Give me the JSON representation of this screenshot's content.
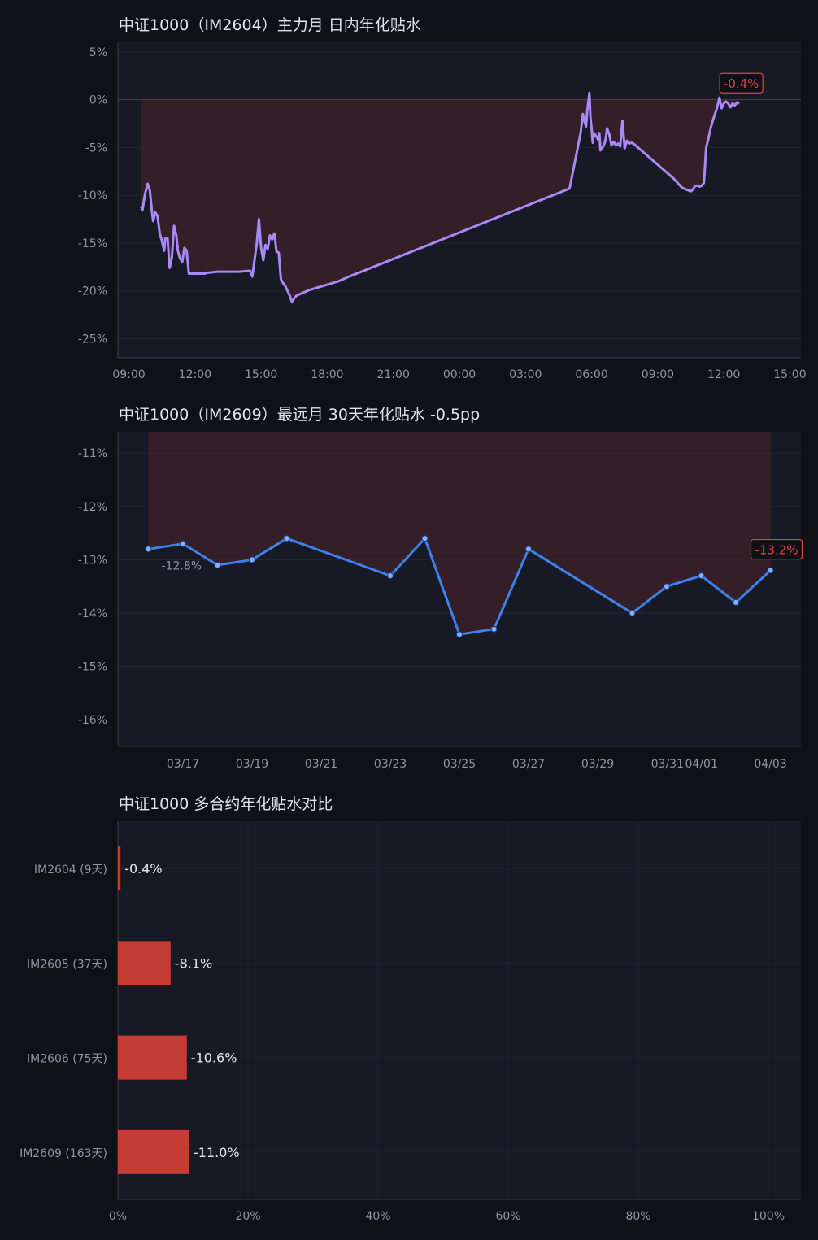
{
  "colors": {
    "background": "#101116",
    "plot_bg": "#171a24",
    "fill": "#3a2029",
    "line_purple": "#a889f5",
    "line_blue": "#3c82ee",
    "bar_red": "#c43c34",
    "callout_red": "#e0463c"
  },
  "chart_data": [
    {
      "type": "area",
      "title": "中证1000（IM2604）主力月 日内年化贴水",
      "x_tick_labels": [
        "09:00",
        "12:00",
        "15:00",
        "18:00",
        "21:00",
        "00:00",
        "03:00",
        "06:00",
        "09:00",
        "12:00",
        "15:00"
      ],
      "y_tick_labels": [
        "5%",
        "0%",
        "-5%",
        "-10%",
        "-15%",
        "-20%",
        "-25%"
      ],
      "ylim": [
        -27,
        6
      ],
      "x_range_hours": [
        -0.5,
        30.5
      ],
      "last_value_label": "-0.4%",
      "grid": true,
      "series": [
        {
          "x_hours": [
            0.55,
            0.62,
            0.72,
            0.85,
            0.95,
            1.05,
            1.1,
            1.2,
            1.3,
            1.4,
            1.5,
            1.6,
            1.65,
            1.75,
            1.85,
            1.95,
            2.05,
            2.15,
            2.22,
            2.32,
            2.42,
            2.52,
            2.62,
            2.72,
            2.8,
            2.88,
            2.95,
            3.05,
            3.15,
            3.25,
            3.35,
            3.45,
            3.52,
            3.6,
            4.0,
            5.0,
            5.5,
            5.6,
            5.7,
            5.8,
            5.9,
            6.0,
            6.1,
            6.2,
            6.3,
            6.4,
            6.5,
            6.6,
            6.7,
            6.8,
            6.9,
            7.0,
            7.1,
            7.2,
            7.3,
            7.4,
            7.5,
            7.6,
            7.7,
            7.8,
            7.9,
            8.0,
            8.1,
            8.2,
            9.5,
            10.0,
            20.0,
            20.5,
            20.6,
            20.7,
            20.75,
            20.8,
            20.9,
            20.95,
            21.0,
            21.05,
            21.1,
            21.2,
            21.3,
            21.35,
            21.4,
            21.5,
            21.6,
            21.65,
            21.7,
            21.8,
            21.9,
            22.0,
            22.1,
            22.2,
            22.3,
            22.4,
            22.5,
            22.55,
            22.6,
            22.7,
            22.8,
            22.9,
            23.0,
            23.1,
            23.3,
            23.5,
            23.7,
            23.9,
            24.1,
            24.3,
            24.5,
            24.7,
            24.9,
            25.1,
            25.3,
            25.5,
            25.6,
            25.7,
            25.8,
            25.9,
            26.0,
            26.1,
            26.2,
            26.3,
            26.4,
            26.5,
            26.6,
            26.7,
            26.8,
            26.9,
            27.0,
            27.1,
            27.2,
            27.3,
            27.4,
            27.5,
            27.6,
            27.7
          ],
          "y": [
            -11.2,
            -11.5,
            -10.0,
            -8.8,
            -9.5,
            -11.8,
            -12.7,
            -11.8,
            -12.2,
            -14.0,
            -14.8,
            -15.8,
            -14.5,
            -14.5,
            -17.6,
            -16.5,
            -13.2,
            -14.2,
            -15.8,
            -16.6,
            -17.0,
            -15.5,
            -15.8,
            -18.2,
            -18.2,
            -18.2,
            -18.2,
            -18.2,
            -18.2,
            -18.2,
            -18.2,
            -18.2,
            -18.1,
            -18.1,
            -18.0,
            -18.0,
            -17.9,
            -18.5,
            -16.8,
            -15.1,
            -12.5,
            -15.5,
            -16.8,
            -15.2,
            -15.6,
            -14.2,
            -14.6,
            -14.0,
            -15.9,
            -16.0,
            -18.8,
            -19.2,
            -19.5,
            -20.0,
            -20.5,
            -21.2,
            -20.8,
            -20.5,
            -20.4,
            -20.3,
            -20.2,
            -20.1,
            -20.0,
            -19.9,
            -19.0,
            -18.5,
            -9.3,
            -3.5,
            -1.5,
            -2.5,
            -2.8,
            -1.2,
            0.7,
            -2.0,
            -3.0,
            -4.5,
            -3.5,
            -3.8,
            -4.2,
            -3.5,
            -5.3,
            -5.0,
            -4.5,
            -4.0,
            -3.0,
            -3.6,
            -4.8,
            -4.4,
            -4.8,
            -4.6,
            -4.9,
            -2.2,
            -5.1,
            -4.7,
            -4.3,
            -4.6,
            -4.5,
            -4.6,
            -4.8,
            -5.0,
            -5.4,
            -5.8,
            -6.2,
            -6.6,
            -7.0,
            -7.4,
            -7.8,
            -8.2,
            -8.7,
            -9.2,
            -9.4,
            -9.6,
            -9.4,
            -9.0,
            -9.0,
            -9.1,
            -9.0,
            -8.7,
            -5.0,
            -4.1,
            -3.0,
            -2.2,
            -1.5,
            -0.8,
            0.2,
            -0.9,
            -0.4,
            -0.2,
            -0.4,
            -0.8,
            -0.4,
            -0.6,
            -0.3,
            -0.4
          ]
        }
      ]
    },
    {
      "type": "line",
      "title": "中证1000（IM2609）最远月 30天年化贴水 -0.5pp",
      "x_tick_labels": [
        "03/17",
        "03/19",
        "03/21",
        "03/23",
        "03/25",
        "03/27",
        "03/29",
        "03/31",
        "04/01",
        "04/03"
      ],
      "y_tick_labels": [
        "-11%",
        "-12%",
        "-13%",
        "-14%",
        "-15%",
        "-16%"
      ],
      "ylim": [
        -16.5,
        -10.6
      ],
      "first_value_label": "-12.8%",
      "last_value_label": "-13.2%",
      "grid": true,
      "series": [
        {
          "x": [
            "03/16",
            "03/17",
            "03/18",
            "03/19",
            "03/20",
            "03/23",
            "03/24",
            "03/25",
            "03/26",
            "03/27",
            "03/30",
            "03/31",
            "04/01",
            "04/02",
            "04/03"
          ],
          "y": [
            -12.8,
            -12.7,
            -13.1,
            -13.0,
            -12.6,
            -13.3,
            -12.6,
            -14.4,
            -14.3,
            -12.8,
            -14.0,
            -13.5,
            -13.3,
            -13.8,
            -13.2
          ]
        }
      ]
    },
    {
      "type": "bar",
      "orientation": "horizontal",
      "title": "中证1000 多合约年化贴水对比",
      "categories": [
        "IM2604 (9天)",
        "IM2605 (37天)",
        "IM2606 (75天)",
        "IM2609 (163天)"
      ],
      "values": [
        -0.4,
        -8.1,
        -10.6,
        -11.0
      ],
      "value_labels": [
        "-0.4%",
        "-8.1%",
        "-10.6%",
        "-11.0%"
      ],
      "x_tick_labels": [
        "0%",
        "20%",
        "40%",
        "60%",
        "80%",
        "100%"
      ],
      "xlim": [
        0,
        105
      ],
      "grid": true
    }
  ]
}
